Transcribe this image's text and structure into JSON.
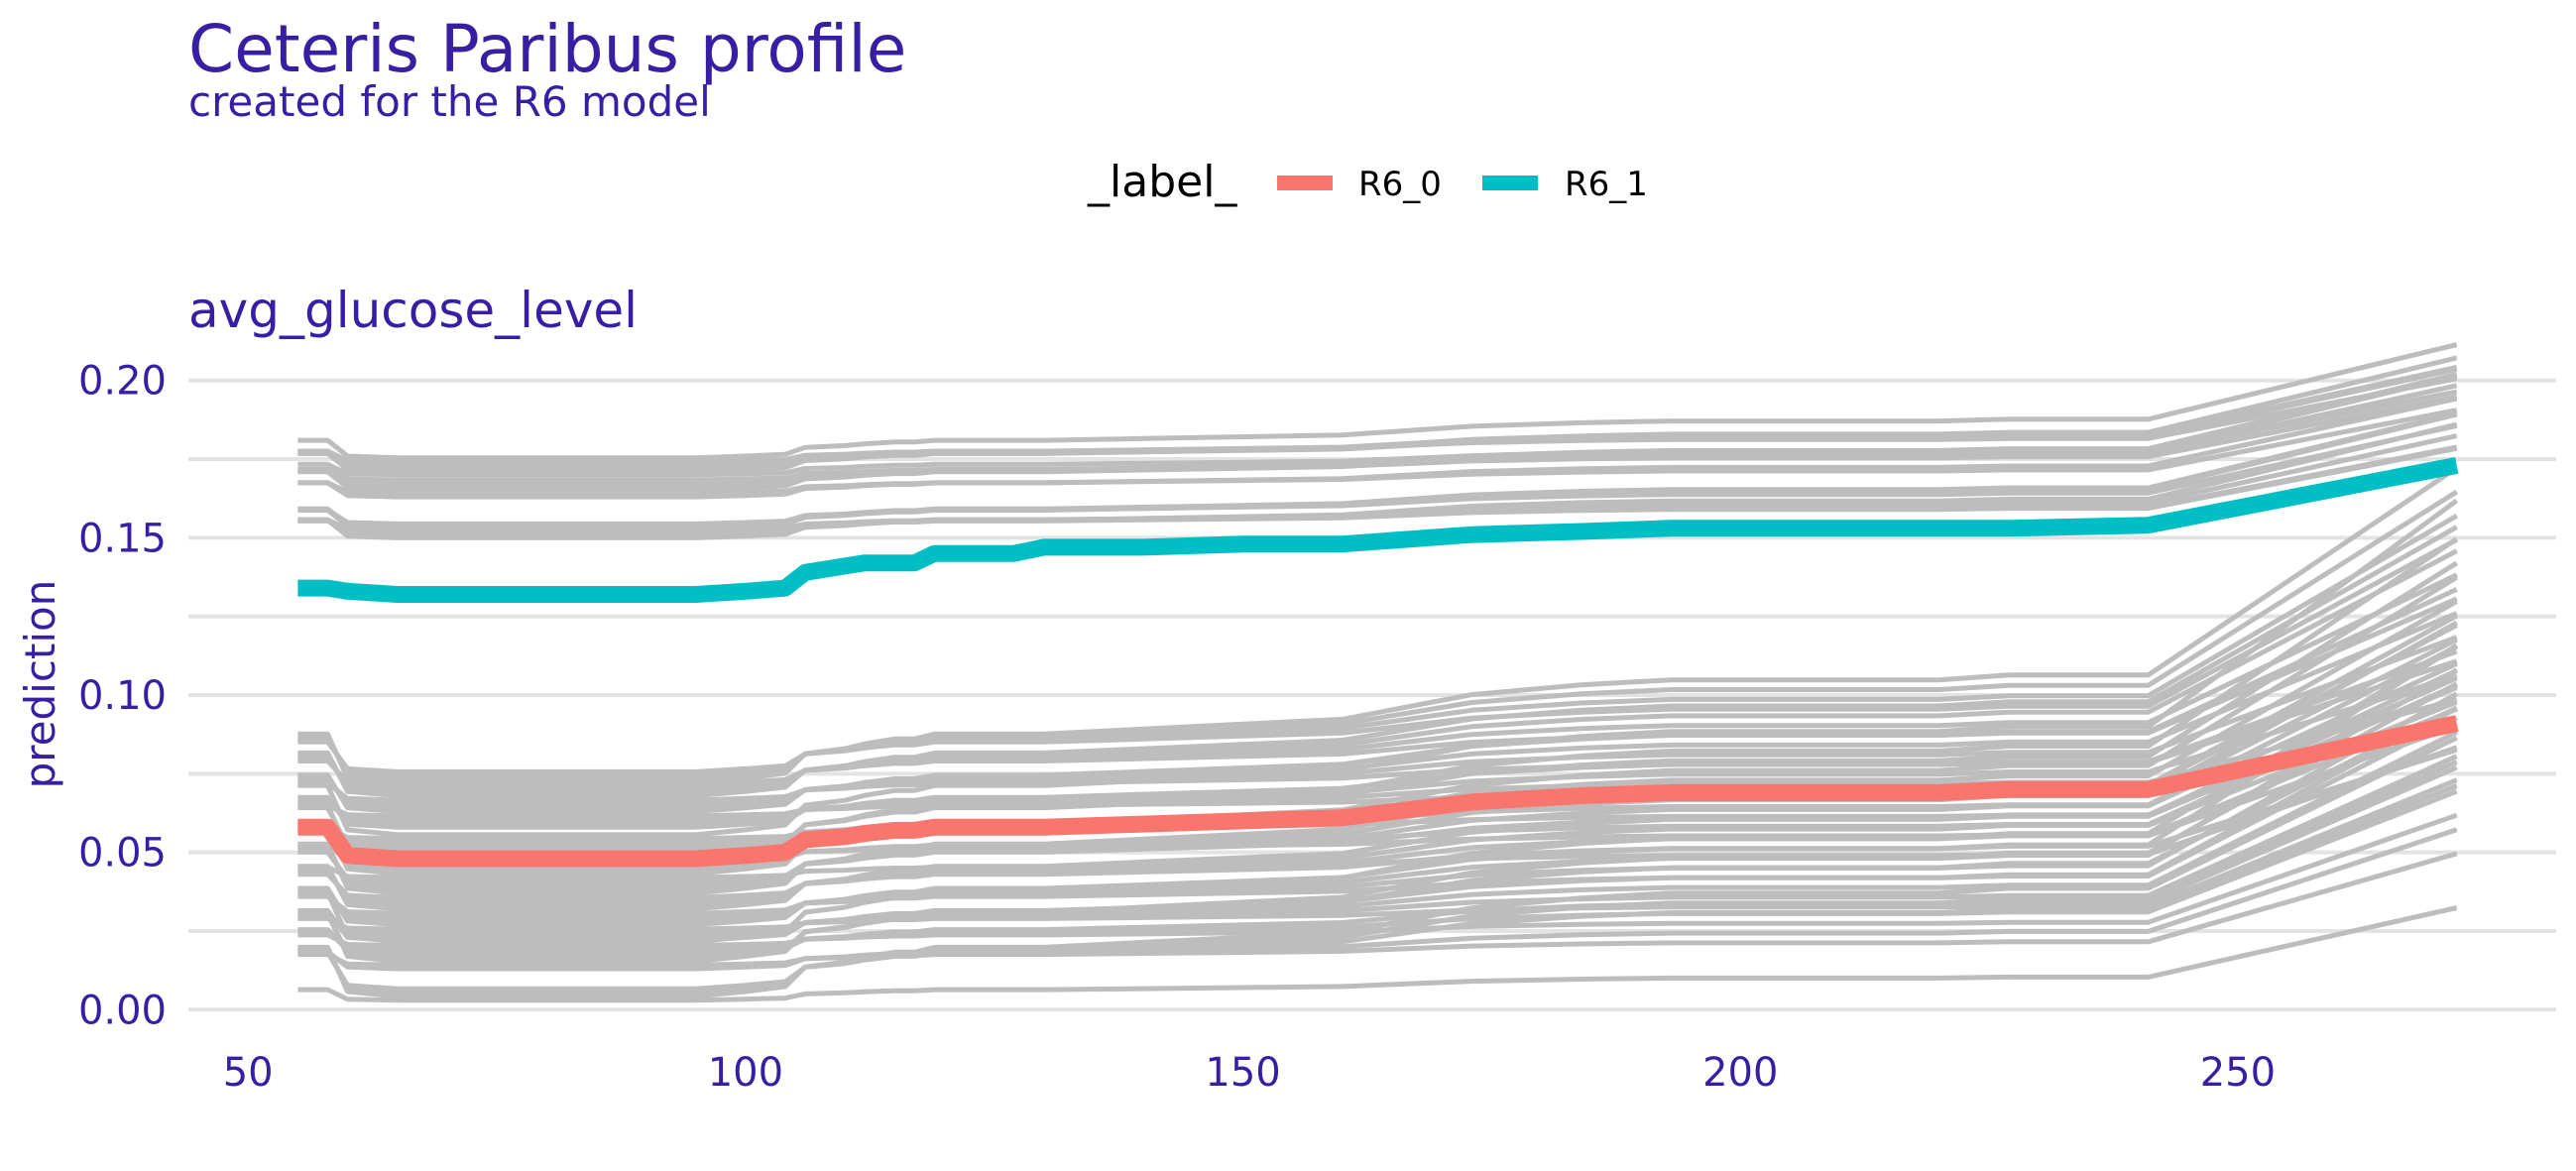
{
  "title": "Ceteris Paribus profile",
  "subtitle": "created for the R6 model",
  "colors": {
    "text": "#371ea3",
    "grid": "#e3e3e3",
    "profile_lines": "#bdbdbd",
    "R6_0": "#f8766d",
    "R6_1": "#00bfc4"
  },
  "chart_data": {
    "type": "line",
    "facet_title": "avg_glucose_level",
    "xlabel": "",
    "ylabel": "prediction",
    "xlim": [
      44,
      282
    ],
    "ylim": [
      -0.01,
      0.21
    ],
    "x_ticks": [
      50,
      100,
      150,
      200,
      250
    ],
    "y_ticks": [
      0.0,
      0.05,
      0.1,
      0.15,
      0.2
    ],
    "y_tick_labels": [
      "0.00",
      "0.05",
      "0.10",
      "0.15",
      "0.20"
    ],
    "grid": true,
    "legend": {
      "position": "top",
      "title": "_label_",
      "entries": [
        "R6_0",
        "R6_1"
      ]
    },
    "x": [
      55,
      58,
      60,
      65,
      80,
      95,
      100,
      104,
      106,
      110,
      112,
      115,
      117,
      119,
      127,
      130,
      140,
      150,
      160,
      173,
      184,
      193,
      200,
      220,
      227,
      241,
      272
    ],
    "series": [
      {
        "name": "R6_0",
        "values": [
          0.058,
          0.058,
          0.049,
          0.048,
          0.048,
          0.048,
          0.049,
          0.05,
          0.054,
          0.055,
          0.056,
          0.057,
          0.057,
          0.058,
          0.058,
          0.058,
          0.059,
          0.06,
          0.061,
          0.066,
          0.068,
          0.069,
          0.069,
          0.069,
          0.07,
          0.07,
          0.091
        ]
      },
      {
        "name": "R6_1",
        "values": [
          0.134,
          0.134,
          0.133,
          0.132,
          0.132,
          0.132,
          0.133,
          0.134,
          0.139,
          0.141,
          0.142,
          0.142,
          0.142,
          0.145,
          0.145,
          0.147,
          0.147,
          0.148,
          0.148,
          0.151,
          0.152,
          0.153,
          0.153,
          0.153,
          0.153,
          0.154,
          0.173
        ]
      }
    ],
    "background_profile_count": 75
  }
}
